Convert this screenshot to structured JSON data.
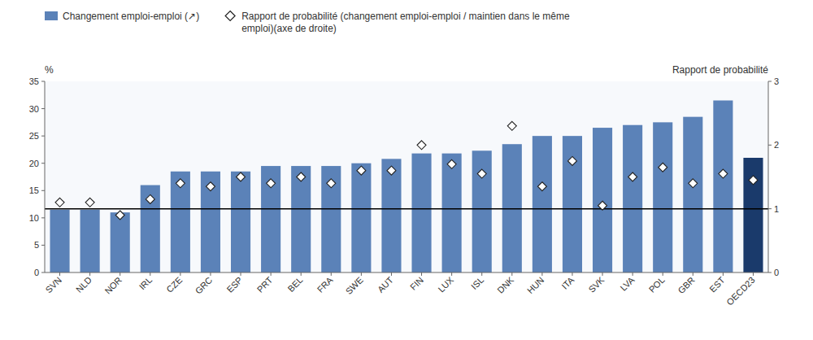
{
  "chart_data": {
    "type": "bar",
    "categories": [
      "SVN",
      "NLD",
      "NOR",
      "IRL",
      "CZE",
      "GRC",
      "ESP",
      "PRT",
      "BEL",
      "FRA",
      "SWE",
      "AUT",
      "FIN",
      "LUX",
      "ISL",
      "DNK",
      "HUN",
      "ITA",
      "SVK",
      "LVA",
      "POL",
      "GBR",
      "EST",
      "OECD23"
    ],
    "series": [
      {
        "name": "Changement emploi-emploi (↗)",
        "type": "bar",
        "color": "#5b82b8",
        "colors": [
          "#5b82b8",
          "#5b82b8",
          "#5b82b8",
          "#5b82b8",
          "#5b82b8",
          "#5b82b8",
          "#5b82b8",
          "#5b82b8",
          "#5b82b8",
          "#5b82b8",
          "#5b82b8",
          "#5b82b8",
          "#5b82b8",
          "#5b82b8",
          "#5b82b8",
          "#5b82b8",
          "#5b82b8",
          "#5b82b8",
          "#5b82b8",
          "#5b82b8",
          "#5b82b8",
          "#5b82b8",
          "#5b82b8",
          "#1a3a6b"
        ],
        "values": [
          11.5,
          11.5,
          11.0,
          16.0,
          18.5,
          18.5,
          18.5,
          19.5,
          19.5,
          19.5,
          20.0,
          20.8,
          21.8,
          21.8,
          22.3,
          23.5,
          25.0,
          25.0,
          26.5,
          27.0,
          27.5,
          28.5,
          31.5,
          21.0
        ]
      },
      {
        "name": "Rapport de probabilité (changement emploi-emploi / maintien dans le même\nemploi)(axe de droite)",
        "type": "scatter",
        "marker": "diamond",
        "axis": "y2",
        "values": [
          1.1,
          1.1,
          0.9,
          1.15,
          1.4,
          1.35,
          1.5,
          1.4,
          1.5,
          1.4,
          1.6,
          1.6,
          2.0,
          1.7,
          1.55,
          2.3,
          1.35,
          1.75,
          1.05,
          1.5,
          1.65,
          1.4,
          1.55,
          1.45
        ]
      }
    ],
    "ylabel": "%",
    "y2label": "Rapport de probabilité",
    "ylim": [
      0,
      35
    ],
    "yticks": [
      0,
      5,
      10,
      15,
      20,
      25,
      30,
      35
    ],
    "y2lim": [
      0,
      3
    ],
    "y2ticks": [
      0,
      1,
      2,
      3
    ],
    "hlines": [
      {
        "value": 1.0,
        "axis": "y2"
      }
    ],
    "grid": false,
    "legend": "top"
  }
}
